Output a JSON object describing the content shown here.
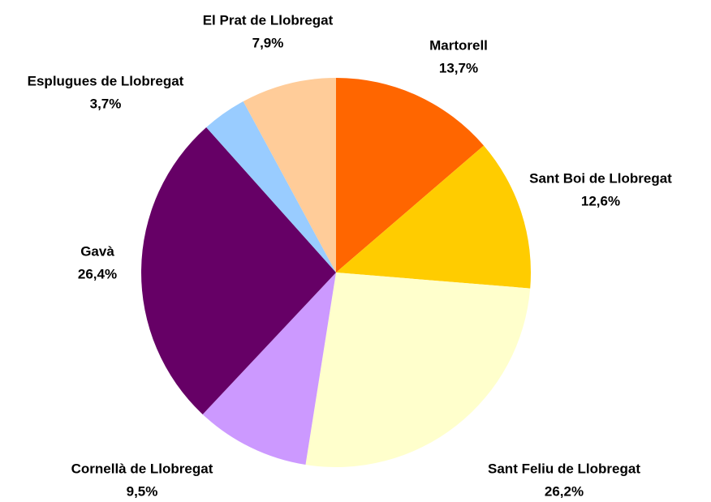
{
  "chart_data": {
    "type": "pie",
    "categories": [
      "Martorell",
      "Sant Boi de Llobregat",
      "Sant Feliu de Llobregat",
      "Cornellà de Llobregat",
      "Gavà",
      "Esplugues de Llobregat",
      "El Prat de Llobregat"
    ],
    "values": [
      13.7,
      12.6,
      26.2,
      9.5,
      26.4,
      3.7,
      7.9
    ],
    "value_labels": [
      "13,7%",
      "12,6%",
      "26,2%",
      "9,5%",
      "26,4%",
      "3,7%",
      "7,9%"
    ],
    "colors": [
      "#ff6600",
      "#ffcc00",
      "#ffffcc",
      "#cc99ff",
      "#660066",
      "#99ccff",
      "#ffcc99"
    ]
  }
}
